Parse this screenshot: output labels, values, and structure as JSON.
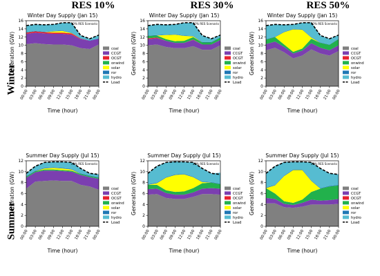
{
  "columns": [
    "RES 10%",
    "RES 30%",
    "RES 50%"
  ],
  "rows": [
    "Winter",
    "Summer"
  ],
  "legend_items": [
    {
      "name": "coal",
      "color": "#808080",
      "kind": "patch"
    },
    {
      "name": "CCGT",
      "color": "#7b3fb0",
      "kind": "patch"
    },
    {
      "name": "OCGT",
      "color": "#e8222e",
      "kind": "patch"
    },
    {
      "name": "onwind",
      "color": "#22b14c",
      "kind": "patch"
    },
    {
      "name": "solar",
      "color": "#ffff00",
      "kind": "patch"
    },
    {
      "name": "ror",
      "color": "#1f77b4",
      "kind": "patch"
    },
    {
      "name": "hydro",
      "color": "#56bcd1",
      "kind": "patch"
    },
    {
      "name": "Load",
      "color": "#000000",
      "kind": "line"
    }
  ],
  "chart_data": [
    {
      "type": "area",
      "title": "Winter Day Supply (Jan 15)",
      "annotation": "10% RES Scenario",
      "xlabel": "Time (hour)",
      "ylabel": "Generation (GW)",
      "x": [
        "00:00",
        "03:00",
        "06:00",
        "09:00",
        "12:00",
        "15:00",
        "18:00",
        "21:00",
        "00:00"
      ],
      "ylim": [
        0,
        16
      ],
      "yticks": [
        0,
        2,
        4,
        6,
        8,
        10,
        12,
        14,
        16
      ],
      "grid": false,
      "legend": "right",
      "series": [
        {
          "name": "coal",
          "values": [
            10.3,
            10.5,
            10.3,
            10.2,
            10.2,
            10.0,
            9.3,
            9.1,
            10.2
          ]
        },
        {
          "name": "CCGT",
          "values": [
            2.5,
            2.6,
            2.6,
            2.6,
            2.6,
            2.6,
            2.2,
            2.0,
            1.4
          ]
        },
        {
          "name": "OCGT",
          "values": [
            0.3,
            0.3,
            0.3,
            0.3,
            0.3,
            0.3,
            0.1,
            0.0,
            0.0
          ]
        },
        {
          "name": "onwind",
          "values": [
            0.0,
            0.0,
            0.0,
            0.0,
            0.0,
            0.0,
            0.0,
            0.0,
            0.0
          ]
        },
        {
          "name": "solar",
          "values": [
            0.0,
            0.0,
            0.0,
            0.3,
            0.4,
            0.1,
            0.0,
            0.0,
            0.0
          ]
        },
        {
          "name": "ror",
          "values": [
            0.1,
            0.1,
            0.1,
            0.1,
            0.1,
            0.1,
            0.1,
            0.1,
            0.1
          ]
        },
        {
          "name": "hydro",
          "values": [
            1.6,
            1.6,
            1.7,
            1.6,
            1.9,
            2.4,
            0.7,
            0.4,
            0.8
          ]
        }
      ],
      "load": [
        14.8,
        15.1,
        15.0,
        15.1,
        15.5,
        15.5,
        12.4,
        11.6,
        12.5
      ]
    },
    {
      "type": "area",
      "title": "Winter Day Supply (Jan 15)",
      "annotation": "30% RES Scenario",
      "xlabel": "Time (hour)",
      "ylabel": "Generation (GW)",
      "x": [
        "00:00",
        "03:00",
        "06:00",
        "09:00",
        "12:00",
        "15:00",
        "18:00",
        "21:00",
        "00:00"
      ],
      "ylim": [
        0,
        16
      ],
      "yticks": [
        0,
        2,
        4,
        6,
        8,
        10,
        12,
        14,
        16
      ],
      "grid": false,
      "legend": "right",
      "series": [
        {
          "name": "coal",
          "values": [
            10.0,
            10.2,
            9.6,
            9.3,
            9.3,
            9.8,
            8.9,
            8.9,
            10.0
          ]
        },
        {
          "name": "CCGT",
          "values": [
            1.5,
            1.5,
            1.5,
            1.3,
            1.3,
            1.5,
            1.3,
            1.3,
            1.3
          ]
        },
        {
          "name": "OCGT",
          "values": [
            0.2,
            0.2,
            0.0,
            0.0,
            0.0,
            0.1,
            0.0,
            0.0,
            0.0
          ]
        },
        {
          "name": "onwind",
          "values": [
            0.6,
            0.5,
            0.4,
            0.4,
            0.5,
            0.6,
            0.5,
            0.5,
            0.6
          ]
        },
        {
          "name": "solar",
          "values": [
            0.0,
            0.0,
            1.0,
            1.6,
            1.2,
            0.2,
            0.0,
            0.0,
            0.0
          ]
        },
        {
          "name": "ror",
          "values": [
            0.1,
            0.1,
            0.1,
            0.1,
            0.1,
            0.1,
            0.1,
            0.1,
            0.1
          ]
        },
        {
          "name": "hydro",
          "values": [
            2.4,
            2.6,
            2.4,
            2.4,
            3.1,
            3.2,
            1.6,
            0.8,
            0.5
          ]
        }
      ],
      "load": [
        14.8,
        15.1,
        15.0,
        15.1,
        15.5,
        15.5,
        12.4,
        11.6,
        12.5
      ]
    },
    {
      "type": "area",
      "title": "Winter Day Supply (Jan 15)",
      "annotation": "50% RES Scenario",
      "xlabel": "Time (hour)",
      "ylabel": "Generation (GW)",
      "x": [
        "00:00",
        "03:00",
        "06:00",
        "09:00",
        "12:00",
        "15:00",
        "18:00",
        "21:00",
        "00:00"
      ],
      "ylim": [
        0,
        16
      ],
      "yticks": [
        0,
        2,
        4,
        6,
        8,
        10,
        12,
        14,
        16
      ],
      "grid": false,
      "legend": "right",
      "series": [
        {
          "name": "coal",
          "values": [
            8.8,
            9.4,
            8.3,
            6.8,
            7.5,
            9.0,
            8.0,
            7.5,
            8.6
          ]
        },
        {
          "name": "CCGT",
          "values": [
            1.5,
            1.5,
            1.3,
            1.2,
            1.2,
            1.5,
            1.4,
            1.3,
            1.4
          ]
        },
        {
          "name": "OCGT",
          "values": [
            0.0,
            0.0,
            0.0,
            0.0,
            0.0,
            0.0,
            0.0,
            0.0,
            0.0
          ]
        },
        {
          "name": "onwind",
          "values": [
            1.1,
            1.1,
            0.6,
            0.4,
            0.5,
            1.1,
            1.2,
            1.3,
            1.5
          ]
        },
        {
          "name": "solar",
          "values": [
            0.0,
            0.0,
            3.0,
            5.5,
            4.6,
            0.3,
            0.0,
            0.0,
            0.0
          ]
        },
        {
          "name": "ror",
          "values": [
            0.1,
            0.1,
            0.1,
            0.1,
            0.1,
            0.1,
            0.1,
            0.1,
            0.1
          ]
        },
        {
          "name": "hydro",
          "values": [
            3.3,
            3.0,
            1.7,
            1.1,
            1.6,
            3.6,
            1.7,
            1.4,
            0.9
          ]
        }
      ],
      "load": [
        14.8,
        15.1,
        15.0,
        15.1,
        15.5,
        15.5,
        12.4,
        11.6,
        12.5
      ]
    },
    {
      "type": "area",
      "title": "Summer Day Supply (Jul 15)",
      "annotation": "10% RES Scenario",
      "xlabel": "Time (hour)",
      "ylabel": "Generation (GW)",
      "x": [
        "00:00",
        "03:00",
        "06:00",
        "09:00",
        "12:00",
        "15:00",
        "18:00",
        "21:00",
        "00:00"
      ],
      "ylim": [
        0,
        12
      ],
      "yticks": [
        0,
        2,
        4,
        6,
        8,
        10,
        12
      ],
      "grid": false,
      "legend": "right",
      "series": [
        {
          "name": "coal",
          "values": [
            6.9,
            8.2,
            8.3,
            8.4,
            8.3,
            8.3,
            7.6,
            7.3,
            6.7
          ]
        },
        {
          "name": "CCGT",
          "values": [
            2.0,
            1.7,
            1.9,
            1.8,
            1.8,
            1.7,
            1.8,
            1.7,
            2.0
          ]
        },
        {
          "name": "OCGT",
          "values": [
            0.0,
            0.0,
            0.0,
            0.0,
            0.0,
            0.0,
            0.0,
            0.0,
            0.0
          ]
        },
        {
          "name": "onwind",
          "values": [
            0.2,
            0.2,
            0.2,
            0.2,
            0.2,
            0.2,
            0.2,
            0.2,
            0.2
          ]
        },
        {
          "name": "solar",
          "values": [
            0.0,
            0.0,
            0.2,
            0.3,
            0.3,
            0.2,
            0.0,
            0.0,
            0.0
          ]
        },
        {
          "name": "ror",
          "values": [
            0.1,
            0.1,
            0.1,
            0.1,
            0.1,
            0.1,
            0.1,
            0.1,
            0.1
          ]
        },
        {
          "name": "hydro",
          "values": [
            0.5,
            0.8,
            1.0,
            1.0,
            1.1,
            1.2,
            0.9,
            0.4,
            0.5
          ]
        }
      ],
      "load": [
        9.7,
        11.0,
        11.7,
        11.8,
        11.8,
        11.7,
        10.6,
        9.7,
        9.5
      ]
    },
    {
      "type": "area",
      "title": "Summer Day Supply (Jul 15)",
      "annotation": "30% RES Scenario",
      "xlabel": "Time (hour)",
      "ylabel": "Generation (GW)",
      "x": [
        "00:00",
        "03:00",
        "06:00",
        "09:00",
        "12:00",
        "15:00",
        "18:00",
        "21:00",
        "00:00"
      ],
      "ylim": [
        0,
        12
      ],
      "yticks": [
        0,
        2,
        4,
        6,
        8,
        10,
        12
      ],
      "grid": false,
      "legend": "right",
      "series": [
        {
          "name": "coal",
          "values": [
            5.8,
            5.9,
            5.2,
            5.0,
            5.0,
            5.4,
            5.9,
            5.9,
            5.8
          ]
        },
        {
          "name": "CCGT",
          "values": [
            1.0,
            1.0,
            0.9,
            0.8,
            0.8,
            0.8,
            1.0,
            1.1,
            1.1
          ]
        },
        {
          "name": "OCGT",
          "values": [
            0.0,
            0.0,
            0.0,
            0.0,
            0.0,
            0.0,
            0.0,
            0.0,
            0.0
          ]
        },
        {
          "name": "onwind",
          "values": [
            0.8,
            0.7,
            0.5,
            0.5,
            0.6,
            0.8,
            1.0,
            1.0,
            0.8
          ]
        },
        {
          "name": "solar",
          "values": [
            0.0,
            0.3,
            2.3,
            3.1,
            3.1,
            2.0,
            0.2,
            0.0,
            0.0
          ]
        },
        {
          "name": "ror",
          "values": [
            0.1,
            0.1,
            0.1,
            0.1,
            0.1,
            0.1,
            0.1,
            0.1,
            0.1
          ]
        },
        {
          "name": "hydro",
          "values": [
            2.0,
            3.0,
            2.7,
            2.4,
            2.2,
            2.6,
            2.4,
            1.6,
            2.0
          ]
        }
      ],
      "load": [
        9.7,
        11.0,
        11.7,
        11.8,
        11.8,
        11.7,
        10.6,
        9.7,
        9.5
      ]
    },
    {
      "type": "area",
      "title": "Summer Day Supply (Jul 15)",
      "annotation": "50% RES Scenario",
      "xlabel": "Time (hour)",
      "ylabel": "Generation (GW)",
      "x": [
        "00:00",
        "03:00",
        "06:00",
        "09:00",
        "12:00",
        "15:00",
        "18:00",
        "21:00",
        "00:00"
      ],
      "ylim": [
        0,
        12
      ],
      "yticks": [
        0,
        2,
        4,
        6,
        8,
        10,
        12
      ],
      "grid": false,
      "legend": "right",
      "series": [
        {
          "name": "coal",
          "values": [
            4.2,
            4.2,
            3.5,
            3.4,
            3.6,
            4.0,
            4.0,
            4.0,
            4.1
          ]
        },
        {
          "name": "CCGT",
          "values": [
            1.0,
            0.8,
            0.6,
            0.5,
            0.7,
            0.9,
            0.7,
            0.8,
            0.9
          ]
        },
        {
          "name": "OCGT",
          "values": [
            0.0,
            0.0,
            0.0,
            0.0,
            0.0,
            0.0,
            0.0,
            0.0,
            0.0
          ]
        },
        {
          "name": "onwind",
          "values": [
            1.8,
            1.0,
            0.5,
            0.4,
            0.6,
            1.4,
            2.2,
            2.5,
            2.5
          ]
        },
        {
          "name": "solar",
          "values": [
            0.0,
            1.5,
            4.6,
            6.0,
            5.4,
            2.0,
            0.0,
            0.0,
            0.0
          ]
        },
        {
          "name": "ror",
          "values": [
            0.1,
            0.1,
            0.1,
            0.1,
            0.1,
            0.1,
            0.1,
            0.1,
            0.1
          ]
        },
        {
          "name": "hydro",
          "values": [
            2.6,
            3.4,
            2.5,
            1.4,
            1.4,
            3.3,
            3.6,
            2.3,
            1.9
          ]
        }
      ],
      "load": [
        9.7,
        11.0,
        11.7,
        11.8,
        11.8,
        11.7,
        10.6,
        9.7,
        9.5
      ]
    }
  ]
}
